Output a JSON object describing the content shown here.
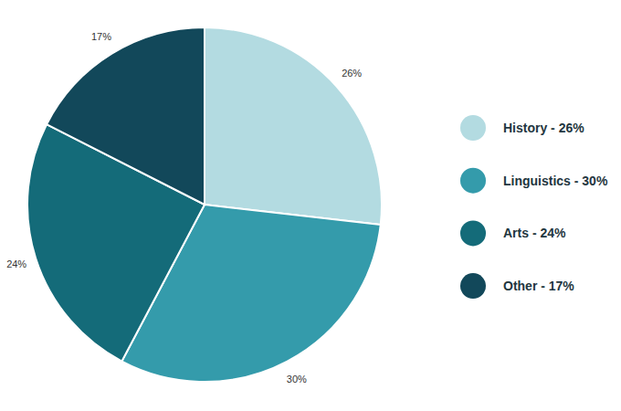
{
  "chart_data": {
    "type": "pie",
    "categories": [
      "History",
      "Linguistics",
      "Arts",
      "Other"
    ],
    "values": [
      26,
      30,
      24,
      17
    ],
    "value_labels": [
      "26%",
      "30%",
      "24%",
      "17%"
    ],
    "legend_labels": [
      "History - 26%",
      "Linguistics - 30%",
      "Arts - 24%",
      "Other - 17%"
    ],
    "colors": [
      "#b3dbe1",
      "#349bab",
      "#146b79",
      "#12485a"
    ],
    "data_labels": true,
    "legend": "right"
  }
}
